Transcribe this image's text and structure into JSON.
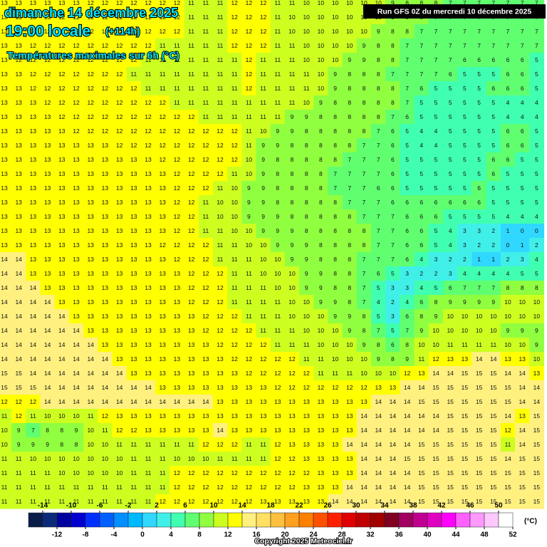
{
  "header": {
    "date": "dimanche 14 décembre 2025",
    "time": "19:00 locale",
    "lead": "(+114h)",
    "subtitle": "Températures maximales sur 6h (°C)",
    "run": "Run GFS 0Z du mercredi 10 décembre 2025"
  },
  "legend": {
    "unit": "(°C)",
    "ticks_top": [
      -14,
      -10,
      -6,
      -2,
      2,
      6,
      10,
      14,
      18,
      22,
      26,
      30,
      34,
      38,
      42,
      46,
      50
    ],
    "ticks_bottom": [
      -12,
      -8,
      -4,
      0,
      4,
      8,
      12,
      16,
      20,
      24,
      28,
      32,
      36,
      40,
      44,
      48,
      52
    ],
    "colors": [
      "#0a1d4a",
      "#0c2a7a",
      "#0000a0",
      "#0000d0",
      "#0030ff",
      "#0060ff",
      "#0090ff",
      "#00b8ff",
      "#30d8ff",
      "#40f0e8",
      "#40ffb0",
      "#60ff70",
      "#90ff40",
      "#ccff20",
      "#ffff00",
      "#fff080",
      "#ffe060",
      "#ffc040",
      "#ffa020",
      "#ff8000",
      "#ff5000",
      "#ff2000",
      "#e00000",
      "#c00000",
      "#a00000",
      "#800020",
      "#a00060",
      "#c00090",
      "#e000c0",
      "#ff00ff",
      "#ff60ff",
      "#ff99ff",
      "#ffc8ff",
      "#ffffff"
    ]
  },
  "grid": {
    "rows": [
      [
        13,
        13,
        13,
        13,
        13,
        13,
        12,
        12,
        12,
        12,
        12,
        12,
        12,
        11,
        11,
        11,
        12,
        12,
        12,
        11,
        11,
        10,
        10,
        10,
        10,
        10,
        10,
        9,
        8,
        8,
        8,
        7,
        7,
        7,
        7,
        7,
        7,
        7
      ],
      [
        13,
        13,
        13,
        13,
        12,
        12,
        12,
        12,
        12,
        12,
        12,
        12,
        12,
        11,
        11,
        11,
        12,
        12,
        12,
        11,
        10,
        10,
        10,
        10,
        10,
        10,
        10,
        9,
        8,
        8,
        7,
        7,
        7,
        7,
        7,
        7,
        7,
        7
      ],
      [
        13,
        13,
        12,
        12,
        12,
        12,
        12,
        12,
        12,
        12,
        12,
        12,
        12,
        11,
        11,
        11,
        12,
        12,
        12,
        11,
        10,
        10,
        10,
        10,
        10,
        10,
        9,
        8,
        8,
        7,
        7,
        7,
        7,
        7,
        7,
        7,
        7,
        7
      ],
      [
        13,
        13,
        12,
        12,
        12,
        12,
        12,
        12,
        12,
        12,
        12,
        11,
        11,
        11,
        11,
        11,
        12,
        12,
        12,
        11,
        11,
        10,
        10,
        10,
        10,
        9,
        8,
        8,
        7,
        7,
        7,
        7,
        7,
        7,
        7,
        7,
        7,
        7
      ],
      [
        13,
        12,
        12,
        12,
        12,
        12,
        12,
        12,
        12,
        12,
        11,
        11,
        11,
        11,
        11,
        11,
        11,
        12,
        11,
        11,
        11,
        10,
        10,
        10,
        9,
        9,
        8,
        8,
        7,
        7,
        7,
        7,
        6,
        6,
        6,
        6,
        6,
        5
      ],
      [
        13,
        13,
        12,
        12,
        12,
        12,
        12,
        12,
        12,
        11,
        11,
        11,
        11,
        11,
        11,
        11,
        11,
        12,
        11,
        11,
        11,
        11,
        10,
        9,
        8,
        8,
        8,
        7,
        7,
        7,
        7,
        6,
        5,
        5,
        5,
        6,
        6,
        5
      ],
      [
        13,
        13,
        12,
        12,
        12,
        12,
        12,
        12,
        12,
        12,
        11,
        11,
        11,
        11,
        11,
        11,
        11,
        12,
        11,
        11,
        11,
        11,
        10,
        9,
        8,
        8,
        8,
        8,
        7,
        6,
        5,
        5,
        5,
        5,
        6,
        6,
        6,
        5
      ],
      [
        13,
        13,
        13,
        12,
        12,
        12,
        12,
        12,
        12,
        12,
        12,
        12,
        11,
        11,
        11,
        11,
        11,
        11,
        11,
        11,
        11,
        10,
        9,
        8,
        8,
        8,
        8,
        8,
        7,
        5,
        5,
        5,
        5,
        5,
        5,
        4,
        4,
        4
      ],
      [
        13,
        13,
        13,
        13,
        12,
        12,
        12,
        12,
        12,
        12,
        12,
        12,
        12,
        12,
        11,
        11,
        11,
        11,
        11,
        11,
        9,
        9,
        8,
        8,
        8,
        8,
        8,
        7,
        6,
        5,
        5,
        5,
        5,
        5,
        5,
        4,
        4,
        4
      ],
      [
        13,
        13,
        13,
        13,
        13,
        12,
        12,
        12,
        12,
        12,
        12,
        12,
        12,
        12,
        12,
        12,
        12,
        11,
        10,
        9,
        9,
        8,
        8,
        8,
        8,
        8,
        7,
        6,
        5,
        4,
        4,
        5,
        5,
        5,
        5,
        6,
        6,
        5
      ],
      [
        13,
        13,
        13,
        13,
        13,
        13,
        13,
        13,
        12,
        12,
        12,
        12,
        12,
        12,
        12,
        12,
        12,
        11,
        9,
        9,
        8,
        8,
        8,
        8,
        8,
        7,
        7,
        6,
        5,
        4,
        4,
        5,
        5,
        5,
        5,
        6,
        6,
        5
      ],
      [
        13,
        13,
        13,
        13,
        13,
        13,
        13,
        13,
        13,
        13,
        13,
        12,
        12,
        12,
        12,
        12,
        12,
        10,
        9,
        8,
        8,
        8,
        8,
        8,
        7,
        7,
        7,
        6,
        5,
        5,
        5,
        5,
        5,
        5,
        6,
        6,
        5,
        5
      ],
      [
        13,
        13,
        13,
        13,
        13,
        13,
        13,
        13,
        13,
        13,
        13,
        13,
        12,
        12,
        12,
        12,
        11,
        10,
        9,
        8,
        8,
        8,
        8,
        7,
        7,
        7,
        7,
        6,
        5,
        5,
        5,
        5,
        5,
        5,
        6,
        5,
        5,
        5
      ],
      [
        13,
        13,
        13,
        13,
        13,
        13,
        13,
        13,
        13,
        13,
        13,
        13,
        12,
        12,
        12,
        11,
        10,
        9,
        9,
        8,
        8,
        8,
        8,
        7,
        7,
        7,
        6,
        6,
        5,
        5,
        5,
        5,
        5,
        6,
        5,
        5,
        5,
        5
      ],
      [
        13,
        13,
        13,
        13,
        13,
        13,
        13,
        13,
        13,
        13,
        13,
        13,
        12,
        12,
        11,
        10,
        10,
        9,
        9,
        8,
        8,
        8,
        8,
        8,
        7,
        7,
        7,
        6,
        6,
        6,
        6,
        6,
        6,
        6,
        5,
        5,
        5,
        5
      ],
      [
        13,
        13,
        13,
        13,
        13,
        13,
        13,
        13,
        13,
        13,
        13,
        13,
        12,
        12,
        11,
        10,
        10,
        9,
        9,
        9,
        8,
        8,
        8,
        8,
        8,
        7,
        7,
        7,
        6,
        6,
        6,
        5,
        5,
        5,
        5,
        4,
        4,
        4
      ],
      [
        13,
        13,
        13,
        13,
        13,
        13,
        13,
        13,
        13,
        13,
        13,
        13,
        12,
        12,
        11,
        11,
        10,
        10,
        9,
        9,
        9,
        8,
        8,
        8,
        8,
        8,
        7,
        7,
        6,
        6,
        5,
        4,
        3,
        3,
        2,
        1,
        0,
        0
      ],
      [
        13,
        13,
        13,
        13,
        13,
        13,
        13,
        13,
        13,
        13,
        13,
        12,
        12,
        12,
        12,
        11,
        11,
        10,
        10,
        9,
        9,
        9,
        8,
        8,
        8,
        8,
        7,
        7,
        6,
        6,
        5,
        4,
        3,
        2,
        2,
        0,
        1,
        2
      ],
      [
        14,
        14,
        13,
        13,
        13,
        13,
        13,
        13,
        13,
        13,
        13,
        13,
        12,
        12,
        12,
        11,
        11,
        11,
        10,
        10,
        9,
        9,
        8,
        8,
        8,
        7,
        7,
        7,
        6,
        4,
        3,
        2,
        2,
        1,
        1,
        2,
        3,
        4
      ],
      [
        14,
        14,
        13,
        13,
        13,
        13,
        13,
        13,
        13,
        13,
        13,
        13,
        13,
        12,
        12,
        12,
        11,
        11,
        10,
        10,
        10,
        9,
        9,
        8,
        8,
        7,
        6,
        5,
        3,
        2,
        2,
        3,
        4,
        4,
        4,
        4,
        5,
        5
      ],
      [
        14,
        14,
        14,
        13,
        13,
        13,
        13,
        13,
        13,
        13,
        13,
        13,
        13,
        12,
        12,
        12,
        11,
        11,
        11,
        10,
        10,
        9,
        9,
        8,
        8,
        7,
        5,
        3,
        3,
        4,
        5,
        6,
        7,
        7,
        7,
        8,
        8,
        8
      ],
      [
        14,
        14,
        14,
        14,
        13,
        13,
        13,
        13,
        13,
        13,
        13,
        13,
        13,
        12,
        12,
        12,
        11,
        11,
        11,
        11,
        10,
        10,
        9,
        9,
        8,
        7,
        4,
        2,
        4,
        6,
        8,
        9,
        9,
        9,
        9,
        10,
        10,
        10
      ],
      [
        14,
        14,
        14,
        14,
        14,
        13,
        13,
        13,
        13,
        13,
        13,
        13,
        13,
        13,
        12,
        12,
        12,
        11,
        11,
        11,
        10,
        10,
        10,
        9,
        9,
        8,
        5,
        3,
        6,
        8,
        9,
        10,
        10,
        10,
        10,
        10,
        10,
        10
      ],
      [
        14,
        14,
        14,
        14,
        14,
        14,
        13,
        13,
        13,
        13,
        13,
        13,
        13,
        13,
        12,
        12,
        12,
        12,
        11,
        11,
        11,
        10,
        10,
        10,
        9,
        8,
        7,
        5,
        7,
        9,
        10,
        10,
        10,
        10,
        10,
        9,
        9,
        9
      ],
      [
        14,
        14,
        14,
        14,
        14,
        14,
        14,
        13,
        13,
        13,
        13,
        13,
        13,
        13,
        13,
        12,
        12,
        12,
        12,
        11,
        11,
        11,
        10,
        10,
        10,
        9,
        8,
        6,
        8,
        10,
        10,
        11,
        11,
        11,
        11,
        10,
        10,
        9
      ],
      [
        14,
        14,
        14,
        14,
        14,
        14,
        14,
        14,
        13,
        13,
        13,
        13,
        13,
        13,
        13,
        13,
        12,
        12,
        12,
        12,
        12,
        11,
        11,
        10,
        10,
        10,
        9,
        8,
        9,
        11,
        12,
        13,
        13,
        14,
        14,
        13,
        13,
        10
      ],
      [
        15,
        15,
        14,
        14,
        14,
        14,
        14,
        14,
        14,
        13,
        13,
        13,
        13,
        13,
        13,
        13,
        13,
        12,
        12,
        12,
        12,
        12,
        11,
        11,
        11,
        10,
        10,
        10,
        12,
        13,
        14,
        14,
        15,
        15,
        15,
        14,
        14,
        13
      ],
      [
        15,
        15,
        15,
        14,
        14,
        14,
        14,
        14,
        14,
        14,
        14,
        13,
        13,
        13,
        13,
        13,
        13,
        13,
        13,
        12,
        12,
        12,
        12,
        12,
        12,
        12,
        13,
        13,
        14,
        14,
        15,
        15,
        15,
        15,
        15,
        15,
        14,
        14
      ],
      [
        12,
        12,
        12,
        14,
        14,
        14,
        14,
        14,
        14,
        14,
        14,
        14,
        14,
        14,
        14,
        13,
        13,
        13,
        13,
        13,
        13,
        13,
        13,
        13,
        13,
        13,
        14,
        14,
        14,
        15,
        15,
        15,
        15,
        15,
        15,
        15,
        14,
        14
      ],
      [
        11,
        12,
        11,
        10,
        10,
        10,
        11,
        12,
        13,
        13,
        13,
        13,
        13,
        13,
        13,
        13,
        13,
        13,
        13,
        13,
        13,
        13,
        13,
        13,
        13,
        14,
        14,
        14,
        14,
        14,
        14,
        15,
        15,
        15,
        15,
        14,
        13,
        15
      ],
      [
        10,
        9,
        7,
        8,
        8,
        9,
        10,
        11,
        12,
        12,
        13,
        13,
        13,
        13,
        13,
        14,
        13,
        13,
        13,
        13,
        13,
        13,
        13,
        13,
        13,
        14,
        14,
        14,
        14,
        14,
        14,
        15,
        15,
        15,
        15,
        12,
        14,
        15
      ],
      [
        10,
        9,
        9,
        9,
        8,
        8,
        10,
        10,
        11,
        11,
        11,
        11,
        11,
        11,
        12,
        12,
        12,
        11,
        11,
        12,
        13,
        13,
        13,
        13,
        14,
        14,
        14,
        14,
        14,
        15,
        15,
        15,
        15,
        15,
        15,
        11,
        14,
        15
      ],
      [
        11,
        11,
        10,
        10,
        10,
        10,
        10,
        10,
        10,
        11,
        11,
        11,
        10,
        10,
        10,
        11,
        11,
        11,
        11,
        12,
        12,
        13,
        13,
        13,
        13,
        14,
        14,
        14,
        15,
        15,
        15,
        15,
        15,
        15,
        15,
        14,
        15,
        15
      ],
      [
        11,
        11,
        11,
        11,
        10,
        10,
        10,
        10,
        10,
        11,
        11,
        11,
        12,
        12,
        12,
        12,
        12,
        12,
        12,
        12,
        12,
        12,
        13,
        13,
        13,
        14,
        14,
        14,
        14,
        15,
        15,
        15,
        15,
        15,
        15,
        15,
        15,
        15
      ],
      [
        11,
        11,
        11,
        11,
        11,
        11,
        11,
        11,
        11,
        11,
        11,
        11,
        12,
        12,
        12,
        12,
        12,
        12,
        12,
        12,
        12,
        13,
        13,
        13,
        14,
        14,
        14,
        14,
        14,
        15,
        15,
        15,
        15,
        15,
        15,
        15,
        15,
        15
      ],
      [
        11,
        11,
        11,
        11,
        11,
        11,
        11,
        11,
        11,
        11,
        11,
        12,
        12,
        12,
        12,
        12,
        12,
        12,
        13,
        13,
        13,
        13,
        13,
        14,
        14,
        14,
        14,
        14,
        14,
        15,
        15,
        15,
        15,
        15,
        15,
        15,
        15,
        15
      ]
    ]
  },
  "footer": {
    "copyright": "Copyright 2025 Meteociel.fr"
  }
}
